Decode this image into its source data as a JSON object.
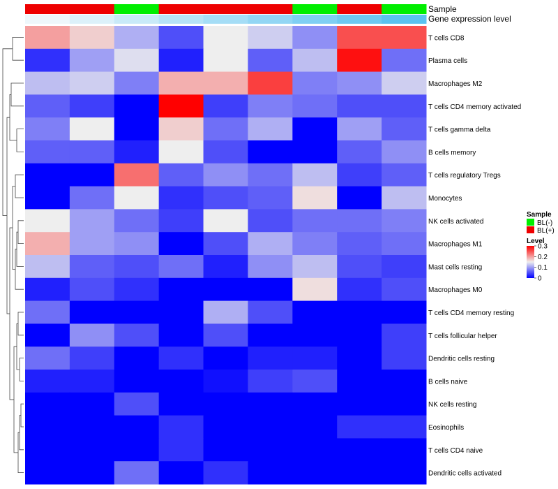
{
  "chart_data": {
    "type": "heatmap",
    "annotations": [
      {
        "name": "Sample",
        "values": [
          "BL(+)",
          "BL(+)",
          "BL(-)",
          "BL(+)",
          "BL(+)",
          "BL(+)",
          "BL(-)",
          "BL(+)",
          "BL(-)"
        ],
        "palette": {
          "BL(-)": "#00ee00",
          "BL(+)": "#ee0000"
        }
      },
      {
        "name": "Gene expression level",
        "values": [
          0.0,
          0.12,
          0.25,
          0.38,
          0.5,
          0.62,
          0.75,
          0.87,
          1.0
        ],
        "low_color": "#eef7fb",
        "high_color": "#5bc2f0"
      }
    ],
    "rows": [
      {
        "label": "T cells CD8",
        "values": [
          0.2,
          0.17,
          0.11,
          0.05,
          0.15,
          0.13,
          0.09,
          0.25,
          0.25
        ]
      },
      {
        "label": "Plasma cells",
        "values": [
          0.03,
          0.1,
          0.14,
          0.02,
          0.15,
          0.06,
          0.12,
          0.29,
          0.07
        ]
      },
      {
        "label": "Macrophages M2",
        "values": [
          0.12,
          0.13,
          0.08,
          0.19,
          0.19,
          0.26,
          0.08,
          0.09,
          0.13
        ]
      },
      {
        "label": "T cells CD4 memory activated",
        "values": [
          0.06,
          0.04,
          0.0,
          0.3,
          0.04,
          0.08,
          0.07,
          0.05,
          0.05
        ]
      },
      {
        "label": "T cells gamma delta",
        "values": [
          0.08,
          0.15,
          0.0,
          0.17,
          0.07,
          0.11,
          0.0,
          0.1,
          0.06
        ]
      },
      {
        "label": "B cells memory",
        "values": [
          0.06,
          0.06,
          0.02,
          0.15,
          0.05,
          0.0,
          0.0,
          0.06,
          0.09
        ]
      },
      {
        "label": "T cells regulatory  Tregs",
        "values": [
          0.0,
          0.0,
          0.23,
          0.06,
          0.09,
          0.07,
          0.12,
          0.04,
          0.06
        ]
      },
      {
        "label": "Monocytes",
        "values": [
          0.0,
          0.07,
          0.15,
          0.03,
          0.05,
          0.06,
          0.16,
          0.0,
          0.12
        ]
      },
      {
        "label": "NK cells activated",
        "values": [
          0.15,
          0.1,
          0.07,
          0.04,
          0.15,
          0.05,
          0.07,
          0.07,
          0.08
        ]
      },
      {
        "label": "Macrophages M1",
        "values": [
          0.19,
          0.1,
          0.09,
          0.0,
          0.05,
          0.11,
          0.08,
          0.06,
          0.07
        ]
      },
      {
        "label": "Mast cells resting",
        "values": [
          0.12,
          0.06,
          0.05,
          0.07,
          0.02,
          0.09,
          0.12,
          0.05,
          0.04
        ]
      },
      {
        "label": "Macrophages M0",
        "values": [
          0.02,
          0.05,
          0.03,
          0.0,
          0.0,
          0.0,
          0.16,
          0.03,
          0.05
        ]
      },
      {
        "label": "T cells CD4 memory resting",
        "values": [
          0.07,
          0.0,
          0.0,
          0.0,
          0.11,
          0.05,
          0.0,
          0.0,
          0.0
        ]
      },
      {
        "label": "T cells follicular helper",
        "values": [
          0.0,
          0.09,
          0.05,
          0.0,
          0.05,
          0.0,
          0.0,
          0.0,
          0.04
        ]
      },
      {
        "label": "Dendritic cells resting",
        "values": [
          0.07,
          0.04,
          0.0,
          0.03,
          0.0,
          0.02,
          0.02,
          0.0,
          0.04
        ]
      },
      {
        "label": "B cells naive",
        "values": [
          0.02,
          0.02,
          0.0,
          0.0,
          0.01,
          0.04,
          0.05,
          0.0,
          0.0
        ]
      },
      {
        "label": "NK cells resting",
        "values": [
          0.0,
          0.0,
          0.05,
          0.0,
          0.0,
          0.0,
          0.0,
          0.0,
          0.0
        ]
      },
      {
        "label": "Eosinophils",
        "values": [
          0.0,
          0.0,
          0.0,
          0.03,
          0.0,
          0.0,
          0.0,
          0.03,
          0.03
        ]
      },
      {
        "label": "T cells CD4 naive",
        "values": [
          0.0,
          0.0,
          0.0,
          0.03,
          0.0,
          0.0,
          0.0,
          0.0,
          0.0
        ]
      },
      {
        "label": "Dendritic cells activated",
        "values": [
          0.0,
          0.0,
          0.07,
          0.0,
          0.03,
          0.0,
          0.0,
          0.0,
          0.0
        ]
      }
    ],
    "color_scale": {
      "name": "Level",
      "stops": [
        {
          "value": 0.0,
          "color": "#0000ff"
        },
        {
          "value": 0.15,
          "color": "#eeeeee"
        },
        {
          "value": 0.3,
          "color": "#ff0000"
        }
      ],
      "ticks": [
        "0",
        "0.1",
        "0.2",
        "0.3"
      ],
      "range": [
        0,
        0.3
      ]
    },
    "legend": {
      "sample_title": "Sample",
      "sample_entries": [
        {
          "label": "BL(-)",
          "color": "#00ee00"
        },
        {
          "label": "BL(+)",
          "color": "#ee0000"
        }
      ],
      "placement": "right"
    },
    "row_dendrogram": true
  }
}
